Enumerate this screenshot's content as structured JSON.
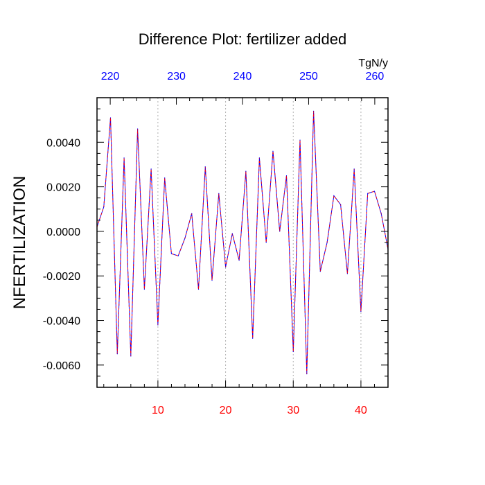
{
  "chart_data": {
    "type": "line",
    "title": "Difference Plot: fertilizer added",
    "ylabel": "NFERTILIZATION",
    "xlabel": "",
    "top_axis_unit": "TgN/y",
    "xlim": [
      1,
      44
    ],
    "ylim": [
      -0.007,
      0.006
    ],
    "x_ticks": [
      10,
      20,
      30,
      40
    ],
    "x_tick_labels": [
      "10",
      "20",
      "30",
      "40"
    ],
    "top_axis": {
      "ticks": [
        220,
        230,
        240,
        250,
        260
      ],
      "tick_labels": [
        "220",
        "230",
        "240",
        "250",
        "260"
      ],
      "range": [
        218,
        262
      ]
    },
    "y_ticks": [
      0.004,
      0.002,
      0.0,
      -0.002,
      -0.004,
      -0.006
    ],
    "y_tick_labels": [
      "0.0040",
      "0.0020",
      "0.0000",
      "-0.0020",
      "-0.0040",
      "-0.0060"
    ],
    "grid": "vertical-dotted",
    "series": [
      {
        "x": [
          1,
          2,
          3,
          4,
          5,
          6,
          7,
          8,
          9,
          10,
          11,
          12,
          13,
          14,
          15,
          16,
          17,
          18,
          19,
          20,
          21,
          22,
          23,
          24,
          25,
          26,
          27,
          28,
          29,
          30,
          31,
          32,
          33,
          34,
          35,
          36,
          37,
          38,
          39,
          40,
          41,
          42,
          43,
          44
        ],
        "values": [
          0.0002,
          0.0011,
          0.0051,
          -0.0055,
          0.0033,
          -0.0056,
          0.0046,
          -0.0026,
          0.0028,
          -0.0042,
          0.0024,
          -0.001,
          -0.0011,
          -0.0003,
          0.0008,
          -0.0026,
          0.0029,
          -0.0022,
          0.0017,
          -0.0016,
          -0.0001,
          -0.0013,
          0.0027,
          -0.0048,
          0.0033,
          -0.0005,
          0.0036,
          0.0,
          0.0025,
          -0.0054,
          0.0041,
          -0.0064,
          0.0054,
          -0.0018,
          -0.0005,
          0.0016,
          0.0012,
          -0.0019,
          0.0028,
          -0.0036,
          0.0017,
          0.0018,
          0.0008,
          -0.0008
        ],
        "line_color": "#0000ff",
        "dash_color": "#ff0000"
      }
    ],
    "colors": {
      "bottom_ticks": "#ff0000",
      "top_ticks": "#0000ff",
      "grid": "#b0b0b0"
    }
  }
}
